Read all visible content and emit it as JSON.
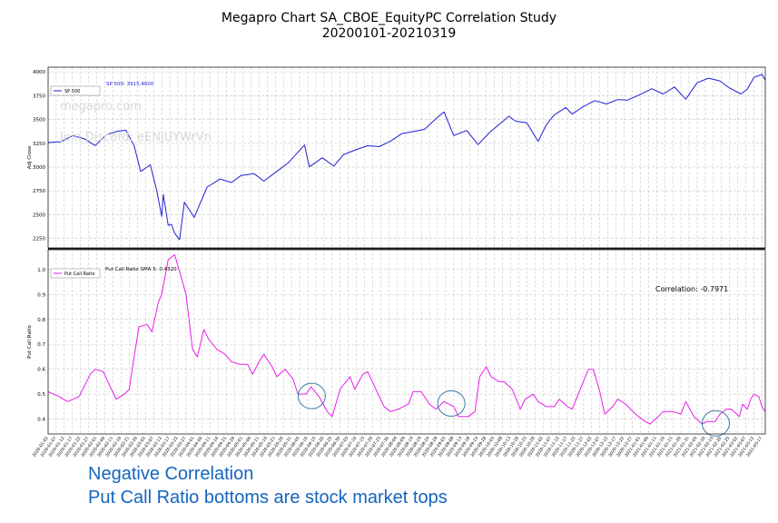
{
  "title_line1": "Megapro Chart SA_CBOE_EquityPC Correlation Study",
  "title_line2": "20200101-20210319",
  "caption_line1": "Negative Correlation",
  "caption_line2": "Put Call Ratio bottoms are stock market tops",
  "colors": {
    "sp500": "#1f1fd6",
    "putcall": "#e81ee8",
    "grid": "#c8c8c8",
    "highlight": "#3d7ba6",
    "caption": "#1565c0"
  },
  "chart_data": [
    {
      "type": "line",
      "title": "",
      "xlabel": "",
      "ylabel": "Adj Close",
      "ylim": [
        2150,
        4050
      ],
      "yticks": [
        2250,
        2500,
        2750,
        3000,
        3250,
        3500,
        3750,
        4000
      ],
      "ytick_labels": [
        "2250",
        "2500",
        "2750",
        "3000",
        "3250",
        "3500",
        "3750",
        "4000"
      ],
      "grid": true,
      "legend": [
        "SP 500"
      ],
      "legend_position": "top-left",
      "annotation": "SP 500: 3915.4600",
      "watermark": [
        "megapro.com",
        "Join Discord: eENjUYWrVn"
      ],
      "series": [
        {
          "name": "SP 500",
          "color": "#1f1fd6",
          "points": [
            [
              "2020-01-02",
              3258
            ],
            [
              "2020-01-10",
              3266
            ],
            [
              "2020-01-17",
              3330
            ],
            [
              "2020-01-24",
              3300
            ],
            [
              "2020-01-31",
              3226
            ],
            [
              "2020-02-07",
              3340
            ],
            [
              "2020-02-14",
              3378
            ],
            [
              "2020-02-19",
              3386
            ],
            [
              "2020-02-24",
              3226
            ],
            [
              "2020-02-28",
              2954
            ],
            [
              "2020-03-05",
              3024
            ],
            [
              "2020-03-09",
              2746
            ],
            [
              "2020-03-12",
              2481
            ],
            [
              "2020-03-13",
              2711
            ],
            [
              "2020-03-16",
              2386
            ],
            [
              "2020-03-18",
              2398
            ],
            [
              "2020-03-20",
              2305
            ],
            [
              "2020-03-23",
              2237
            ],
            [
              "2020-03-26",
              2630
            ],
            [
              "2020-04-01",
              2471
            ],
            [
              "2020-04-09",
              2790
            ],
            [
              "2020-04-17",
              2875
            ],
            [
              "2020-04-24",
              2837
            ],
            [
              "2020-04-30",
              2912
            ],
            [
              "2020-05-08",
              2930
            ],
            [
              "2020-05-14",
              2852
            ],
            [
              "2020-05-22",
              2955
            ],
            [
              "2020-05-29",
              3044
            ],
            [
              "2020-06-08",
              3232
            ],
            [
              "2020-06-11",
              3002
            ],
            [
              "2020-06-19",
              3098
            ],
            [
              "2020-06-26",
              3009
            ],
            [
              "2020-07-02",
              3130
            ],
            [
              "2020-07-10",
              3185
            ],
            [
              "2020-07-17",
              3224
            ],
            [
              "2020-07-24",
              3215
            ],
            [
              "2020-07-31",
              3271
            ],
            [
              "2020-08-07",
              3351
            ],
            [
              "2020-08-14",
              3373
            ],
            [
              "2020-08-21",
              3397
            ],
            [
              "2020-08-28",
              3508
            ],
            [
              "2020-09-02",
              3580
            ],
            [
              "2020-09-08",
              3331
            ],
            [
              "2020-09-16",
              3385
            ],
            [
              "2020-09-23",
              3237
            ],
            [
              "2020-09-30",
              3363
            ],
            [
              "2020-10-12",
              3534
            ],
            [
              "2020-10-16",
              3483
            ],
            [
              "2020-10-23",
              3465
            ],
            [
              "2020-10-30",
              3270
            ],
            [
              "2020-11-04",
              3443
            ],
            [
              "2020-11-09",
              3550
            ],
            [
              "2020-11-16",
              3626
            ],
            [
              "2020-11-20",
              3557
            ],
            [
              "2020-11-27",
              3638
            ],
            [
              "2020-12-04",
              3699
            ],
            [
              "2020-12-11",
              3663
            ],
            [
              "2020-12-18",
              3709
            ],
            [
              "2020-12-24",
              3703
            ],
            [
              "2020-12-31",
              3756
            ],
            [
              "2021-01-08",
              3824
            ],
            [
              "2021-01-15",
              3768
            ],
            [
              "2021-01-22",
              3841
            ],
            [
              "2021-01-29",
              3714
            ],
            [
              "2021-02-05",
              3886
            ],
            [
              "2021-02-12",
              3934
            ],
            [
              "2021-02-19",
              3906
            ],
            [
              "2021-02-25",
              3829
            ],
            [
              "2021-03-04",
              3768
            ],
            [
              "2021-03-08",
              3821
            ],
            [
              "2021-03-12",
              3943
            ],
            [
              "2021-03-17",
              3974
            ],
            [
              "2021-03-19",
              3913
            ]
          ]
        }
      ]
    },
    {
      "type": "line",
      "title": "",
      "xlabel": "",
      "ylabel": "Put Call Ratio",
      "ylim": [
        0.34,
        1.08
      ],
      "yticks": [
        0.4,
        0.5,
        0.6,
        0.7,
        0.8,
        0.9,
        1.0
      ],
      "ytick_labels": [
        "0.4",
        "0.5",
        "0.6",
        "0.7",
        "0.8",
        "0.9",
        "1.0"
      ],
      "grid": true,
      "legend": [
        "Put Call Ratio"
      ],
      "legend_position": "top-left",
      "annotation": "Put Call Ratio SMA 5: 0.4320",
      "correlation_text": "Correlation: -0.7971",
      "highlighted_bottoms": [
        "2020-06-08",
        "2020-09-02",
        "2021-02-12"
      ],
      "series": [
        {
          "name": "Put Call Ratio",
          "color": "#e81ee8",
          "points": [
            [
              "2020-01-02",
              0.51
            ],
            [
              "2020-01-09",
              0.49
            ],
            [
              "2020-01-14",
              0.47
            ],
            [
              "2020-01-21",
              0.49
            ],
            [
              "2020-01-28",
              0.58
            ],
            [
              "2020-01-31",
              0.6
            ],
            [
              "2020-02-05",
              0.59
            ],
            [
              "2020-02-10",
              0.52
            ],
            [
              "2020-02-13",
              0.48
            ],
            [
              "2020-02-18",
              0.5
            ],
            [
              "2020-02-21",
              0.52
            ],
            [
              "2020-02-24",
              0.65
            ],
            [
              "2020-02-27",
              0.77
            ],
            [
              "2020-03-03",
              0.78
            ],
            [
              "2020-03-06",
              0.75
            ],
            [
              "2020-03-10",
              0.87
            ],
            [
              "2020-03-12",
              0.9
            ],
            [
              "2020-03-16",
              1.04
            ],
            [
              "2020-03-20",
              1.06
            ],
            [
              "2020-03-24",
              0.97
            ],
            [
              "2020-03-27",
              0.9
            ],
            [
              "2020-03-31",
              0.68
            ],
            [
              "2020-04-03",
              0.65
            ],
            [
              "2020-04-07",
              0.76
            ],
            [
              "2020-04-10",
              0.72
            ],
            [
              "2020-04-15",
              0.68
            ],
            [
              "2020-04-20",
              0.66
            ],
            [
              "2020-04-24",
              0.63
            ],
            [
              "2020-04-29",
              0.62
            ],
            [
              "2020-05-04",
              0.62
            ],
            [
              "2020-05-07",
              0.58
            ],
            [
              "2020-05-11",
              0.63
            ],
            [
              "2020-05-14",
              0.66
            ],
            [
              "2020-05-19",
              0.61
            ],
            [
              "2020-05-22",
              0.57
            ],
            [
              "2020-05-27",
              0.6
            ],
            [
              "2020-06-01",
              0.56
            ],
            [
              "2020-06-04",
              0.5
            ],
            [
              "2020-06-09",
              0.5
            ],
            [
              "2020-06-12",
              0.53
            ],
            [
              "2020-06-17",
              0.49
            ],
            [
              "2020-06-22",
              0.43
            ],
            [
              "2020-06-25",
              0.41
            ],
            [
              "2020-06-30",
              0.52
            ],
            [
              "2020-07-06",
              0.57
            ],
            [
              "2020-07-09",
              0.52
            ],
            [
              "2020-07-14",
              0.58
            ],
            [
              "2020-07-17",
              0.59
            ],
            [
              "2020-07-22",
              0.52
            ],
            [
              "2020-07-27",
              0.45
            ],
            [
              "2020-07-31",
              0.43
            ],
            [
              "2020-08-05",
              0.44
            ],
            [
              "2020-08-11",
              0.46
            ],
            [
              "2020-08-14",
              0.51
            ],
            [
              "2020-08-19",
              0.51
            ],
            [
              "2020-08-24",
              0.46
            ],
            [
              "2020-08-28",
              0.44
            ],
            [
              "2020-09-02",
              0.47
            ],
            [
              "2020-09-08",
              0.45
            ],
            [
              "2020-09-11",
              0.41
            ],
            [
              "2020-09-17",
              0.41
            ],
            [
              "2020-09-21",
              0.43
            ],
            [
              "2020-09-24",
              0.57
            ],
            [
              "2020-09-28",
              0.61
            ],
            [
              "2020-10-01",
              0.57
            ],
            [
              "2020-10-06",
              0.55
            ],
            [
              "2020-10-09",
              0.55
            ],
            [
              "2020-10-14",
              0.52
            ],
            [
              "2020-10-19",
              0.44
            ],
            [
              "2020-10-22",
              0.48
            ],
            [
              "2020-10-27",
              0.5
            ],
            [
              "2020-10-30",
              0.47
            ],
            [
              "2020-11-04",
              0.45
            ],
            [
              "2020-11-09",
              0.45
            ],
            [
              "2020-11-12",
              0.48
            ],
            [
              "2020-11-17",
              0.45
            ],
            [
              "2020-11-20",
              0.44
            ],
            [
              "2020-11-25",
              0.52
            ],
            [
              "2020-11-30",
              0.6
            ],
            [
              "2020-12-03",
              0.6
            ],
            [
              "2020-12-07",
              0.51
            ],
            [
              "2020-12-10",
              0.42
            ],
            [
              "2020-12-15",
              0.45
            ],
            [
              "2020-12-18",
              0.48
            ],
            [
              "2020-12-23",
              0.46
            ],
            [
              "2020-12-29",
              0.42
            ],
            [
              "2021-01-04",
              0.39
            ],
            [
              "2021-01-07",
              0.38
            ],
            [
              "2021-01-12",
              0.41
            ],
            [
              "2021-01-15",
              0.43
            ],
            [
              "2021-01-21",
              0.43
            ],
            [
              "2021-01-26",
              0.42
            ],
            [
              "2021-01-29",
              0.47
            ],
            [
              "2021-02-03",
              0.41
            ],
            [
              "2021-02-08",
              0.38
            ],
            [
              "2021-02-11",
              0.39
            ],
            [
              "2021-02-16",
              0.39
            ],
            [
              "2021-02-19",
              0.42
            ],
            [
              "2021-02-23",
              0.44
            ],
            [
              "2021-02-26",
              0.44
            ],
            [
              "2021-03-03",
              0.41
            ],
            [
              "2021-03-05",
              0.46
            ],
            [
              "2021-03-08",
              0.44
            ],
            [
              "2021-03-10",
              0.48
            ],
            [
              "2021-03-12",
              0.5
            ],
            [
              "2021-03-15",
              0.49
            ],
            [
              "2021-03-17",
              0.45
            ],
            [
              "2021-03-19",
              0.43
            ]
          ]
        }
      ]
    }
  ]
}
